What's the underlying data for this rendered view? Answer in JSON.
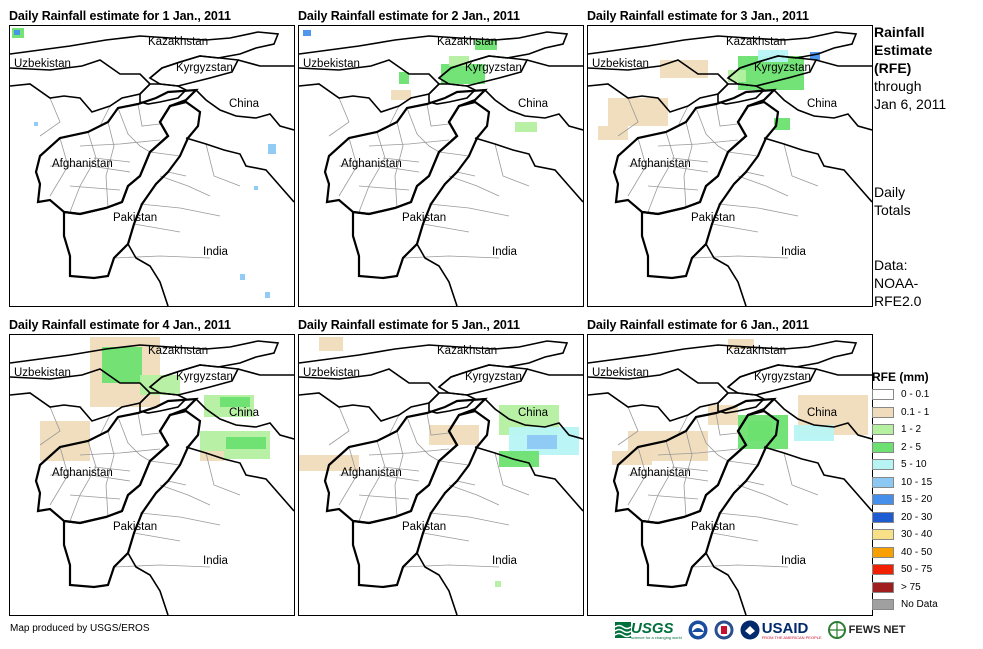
{
  "panels": [
    {
      "title": "Daily Rainfall estimate for 1 Jan., 2011"
    },
    {
      "title": "Daily Rainfall estimate for 2 Jan., 2011"
    },
    {
      "title": "Daily Rainfall estimate for 3 Jan., 2011"
    },
    {
      "title": "Daily Rainfall estimate for 4 Jan., 2011"
    },
    {
      "title": "Daily Rainfall estimate for 5 Jan., 2011"
    },
    {
      "title": "Daily Rainfall estimate for 6 Jan., 2011"
    }
  ],
  "places": {
    "kazakhstan": "Kazakhstan",
    "uzbekistan": "Uzbekistan",
    "kyrgyzstan": "Kyrgyzstan",
    "china": "China",
    "afghanistan": "Afghanistan",
    "pakistan": "Pakistan",
    "india": "India"
  },
  "side": {
    "title_bold": [
      "Rainfall",
      "Estimate",
      "(RFE)"
    ],
    "title_rest": [
      "through",
      "Jan 6, 2011"
    ],
    "totals": [
      "Daily",
      "Totals"
    ],
    "data": [
      "Data:",
      "NOAA-",
      "RFE2.0"
    ]
  },
  "legend": {
    "title": "RFE (mm)",
    "items": [
      {
        "label": "0 - 0.1",
        "color": "#ffffff"
      },
      {
        "label": "0.1 - 1",
        "color": "#f0dcbc"
      },
      {
        "label": "1 - 2",
        "color": "#b4f0a0"
      },
      {
        "label": "2 - 5",
        "color": "#6ce070"
      },
      {
        "label": "5 - 10",
        "color": "#b8f4f4"
      },
      {
        "label": "10 - 15",
        "color": "#8cc8f4"
      },
      {
        "label": "15 - 20",
        "color": "#4690ec"
      },
      {
        "label": "20 - 30",
        "color": "#1e5ad2"
      },
      {
        "label": "30 - 40",
        "color": "#f8e088"
      },
      {
        "label": "40 - 50",
        "color": "#f8a000"
      },
      {
        "label": "50 - 75",
        "color": "#f02000"
      },
      {
        "label": "> 75",
        "color": "#a01e1e"
      },
      {
        "label": "No Data",
        "color": "#a0a0a0"
      }
    ]
  },
  "credit": "Map produced by USGS/EROS",
  "logos": {
    "usgs": "USGS",
    "usgs_tagline": "science for a changing world",
    "usaid": "USAID",
    "usaid_tagline": "FROM THE AMERICAN PEOPLE",
    "fewsnet": "FEWS NET"
  }
}
